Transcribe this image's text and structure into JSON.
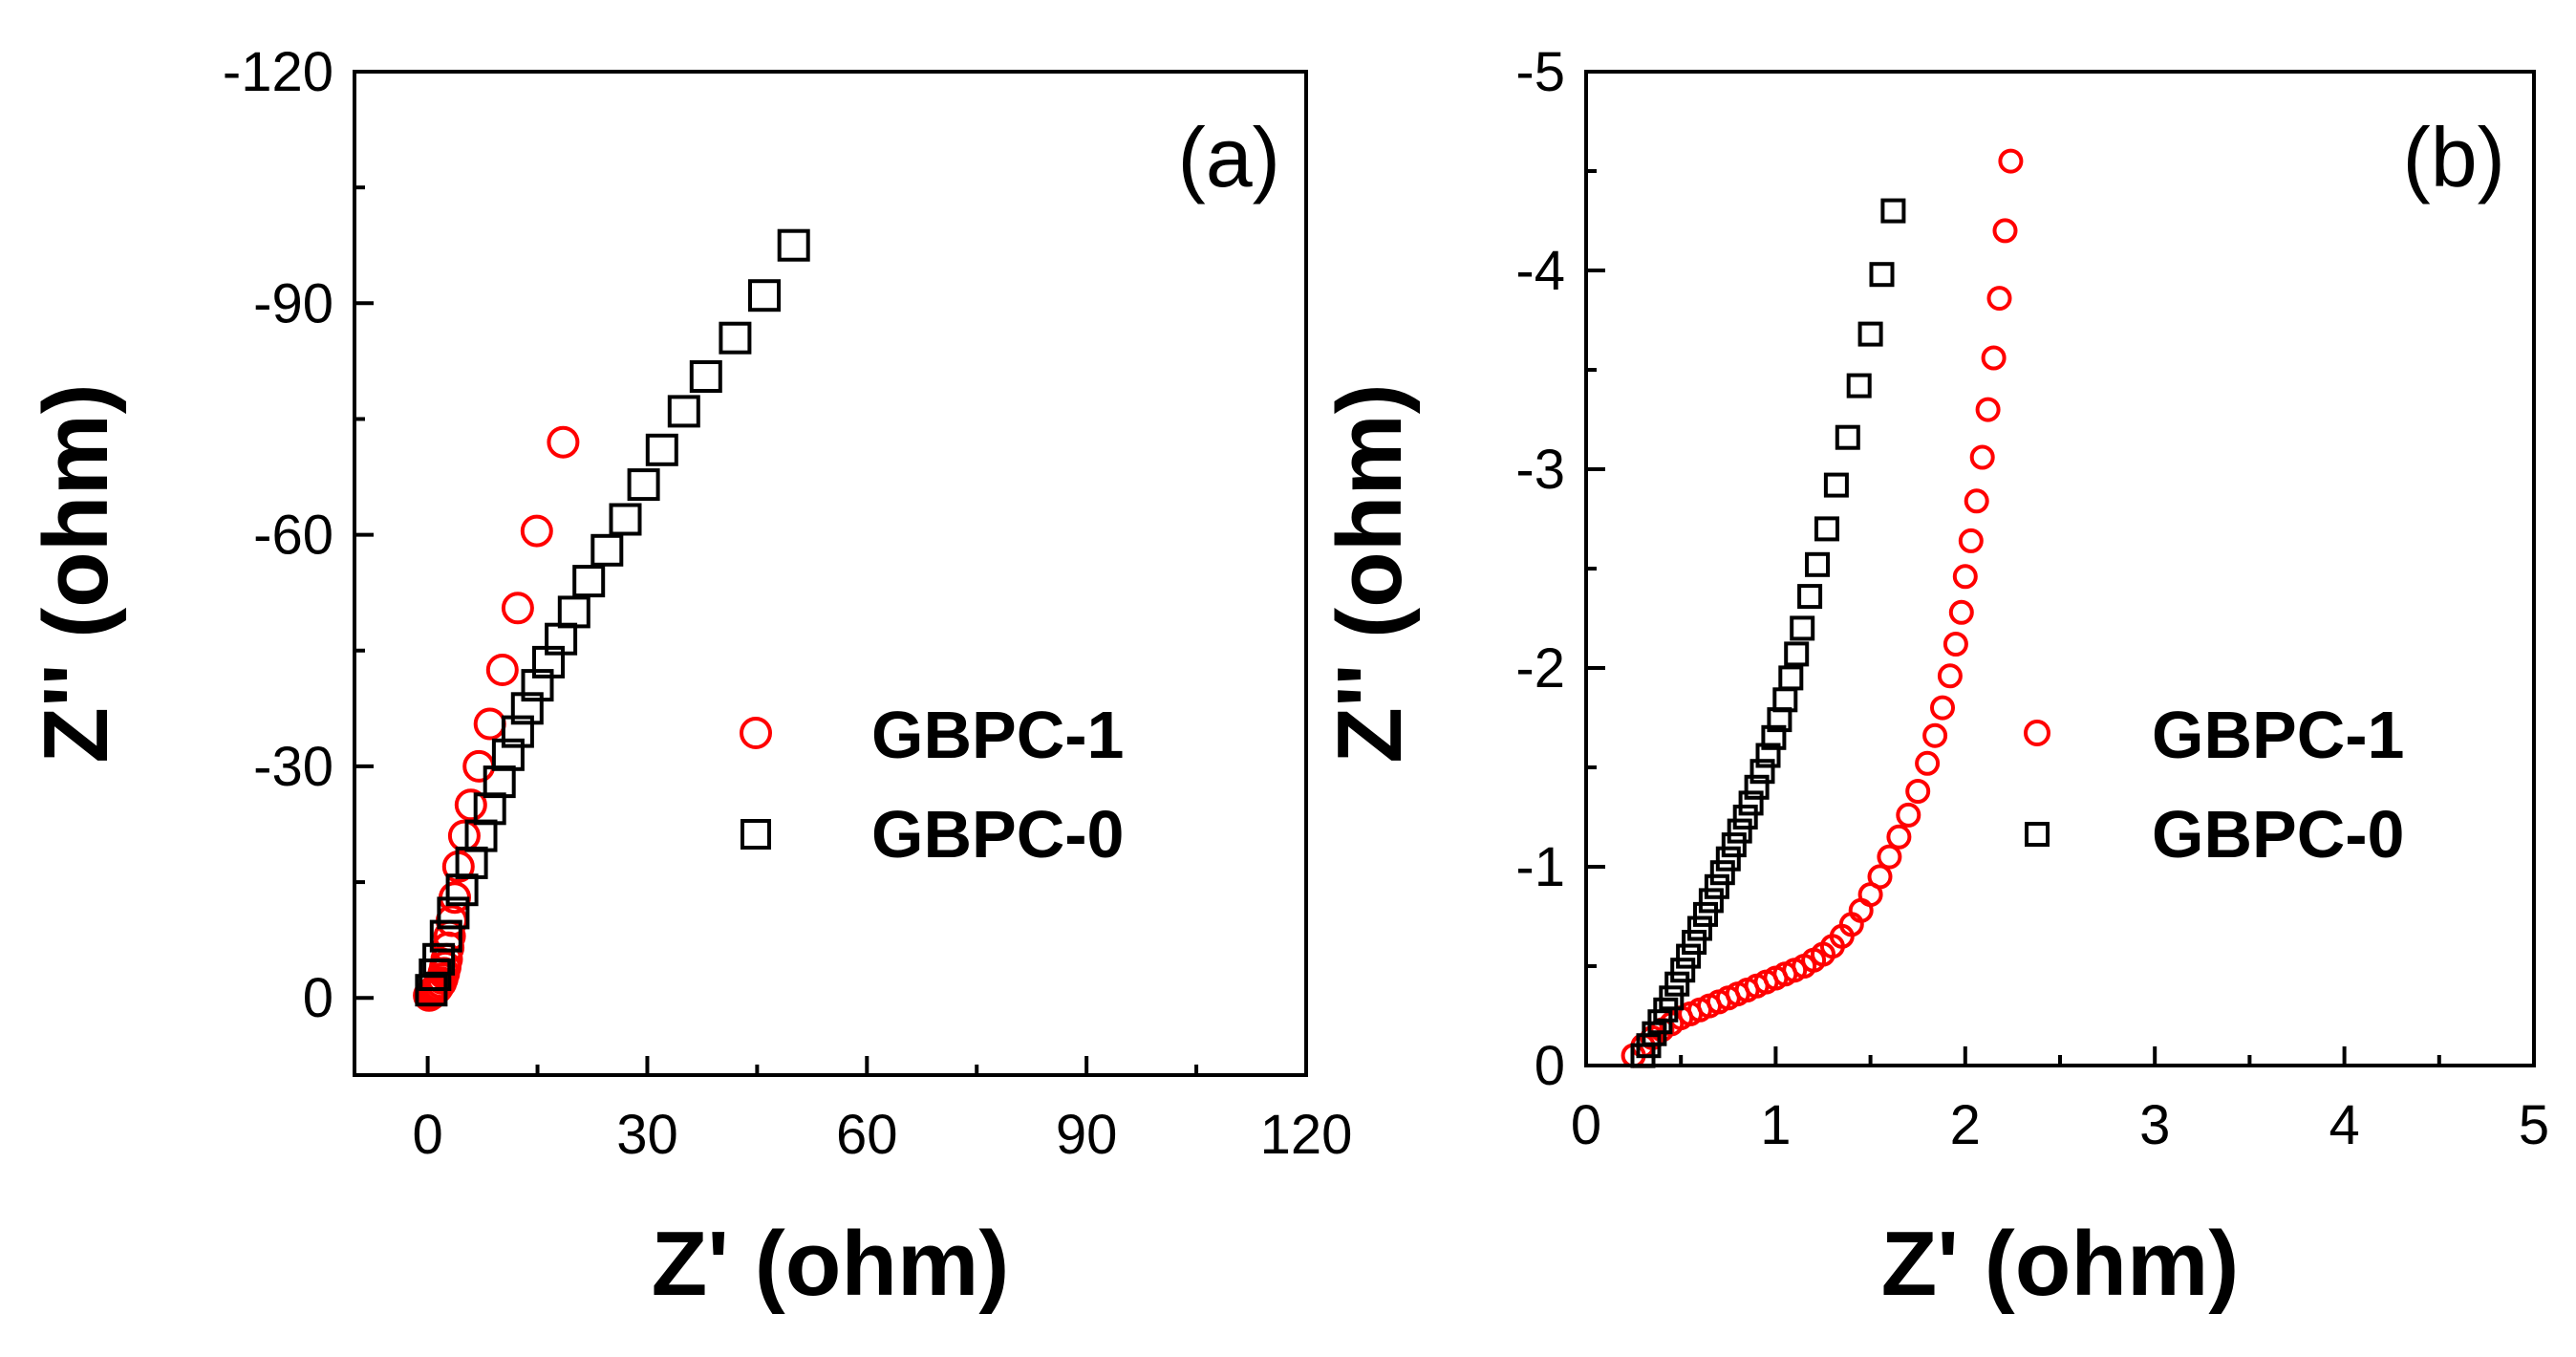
{
  "chart_data": [
    {
      "type": "scatter",
      "panel_label": "(a)",
      "xlabel": "Z' (ohm)",
      "ylabel": "Z'' (ohm)",
      "xlim": [
        -10,
        120
      ],
      "ylim": [
        10,
        -120
      ],
      "x_ticks": [
        0,
        30,
        60,
        90,
        120
      ],
      "x_tick_labels": [
        "0",
        "30",
        "60",
        "90",
        "120"
      ],
      "y_ticks": [
        0,
        -30,
        -60,
        -90,
        -120
      ],
      "y_tick_labels": [
        "0",
        "-30",
        "-60",
        "-90",
        "-120"
      ],
      "grid": false,
      "legend_position": "center-right",
      "series": [
        {
          "name": "GBPC-1",
          "marker": "circle",
          "color": "#ff0000",
          "x": [
            0.2,
            0.5,
            0.8,
            1.0,
            1.3,
            1.5,
            1.8,
            2.0,
            2.2,
            2.4,
            2.6,
            2.8,
            3.0,
            3.3,
            3.7,
            4.2,
            5.0,
            5.9,
            7.0,
            8.5,
            10.2,
            12.3,
            14.9,
            18.5
          ],
          "y": [
            -0.3,
            -0.5,
            -0.8,
            -1.0,
            -1.3,
            -1.6,
            -2.0,
            -2.5,
            -3.2,
            -4.0,
            -5.0,
            -6.5,
            -8.0,
            -10.0,
            -13.0,
            -17.0,
            -21.0,
            -25.0,
            -30.0,
            -35.5,
            -42.5,
            -50.5,
            -60.5,
            -72.0
          ]
        },
        {
          "name": "GBPC-0",
          "marker": "square",
          "color": "#000000",
          "x": [
            0.5,
            1.0,
            1.5,
            2.5,
            3.5,
            4.7,
            6.0,
            7.3,
            8.5,
            9.8,
            11.0,
            12.3,
            13.6,
            15.0,
            16.5,
            18.2,
            20.0,
            22.0,
            24.5,
            27.0,
            29.5,
            32.0,
            35.0,
            38.0,
            42.0,
            46.0,
            50.0
          ],
          "y": [
            -1.0,
            -3.0,
            -5.0,
            -8.0,
            -11.0,
            -14.0,
            -17.5,
            -21.0,
            -24.5,
            -28.0,
            -31.5,
            -34.5,
            -37.5,
            -40.5,
            -43.5,
            -46.5,
            -50.0,
            -54.0,
            -58.0,
            -62.0,
            -66.5,
            -71.0,
            -76.0,
            -80.5,
            -85.5,
            -91.0,
            -97.5
          ]
        }
      ]
    },
    {
      "type": "scatter",
      "panel_label": "(b)",
      "xlabel": "Z' (ohm)",
      "ylabel": "Z'' (ohm)",
      "xlim": [
        0,
        5
      ],
      "ylim": [
        0,
        -5
      ],
      "x_ticks": [
        0,
        1,
        2,
        3,
        4,
        5
      ],
      "x_tick_labels": [
        "0",
        "1",
        "2",
        "3",
        "4",
        "5"
      ],
      "y_ticks": [
        0,
        -1,
        -2,
        -3,
        -4,
        -5
      ],
      "y_tick_labels": [
        "0",
        "-1",
        "-2",
        "-3",
        "-4",
        "-5"
      ],
      "grid": false,
      "legend_position": "center-right",
      "series": [
        {
          "name": "GBPC-1",
          "marker": "circle",
          "color": "#ff0000",
          "x": [
            0.25,
            0.3,
            0.35,
            0.4,
            0.45,
            0.5,
            0.55,
            0.6,
            0.65,
            0.7,
            0.75,
            0.8,
            0.85,
            0.9,
            0.95,
            1.0,
            1.05,
            1.1,
            1.15,
            1.2,
            1.25,
            1.3,
            1.35,
            1.4,
            1.45,
            1.5,
            1.55,
            1.6,
            1.65,
            1.7,
            1.75,
            1.8,
            1.84,
            1.88,
            1.92,
            1.95,
            1.98,
            2.0,
            2.03,
            2.06,
            2.09,
            2.12,
            2.15,
            2.18,
            2.21,
            2.24
          ],
          "y": [
            -0.05,
            -0.1,
            -0.14,
            -0.18,
            -0.21,
            -0.24,
            -0.26,
            -0.28,
            -0.3,
            -0.32,
            -0.34,
            -0.36,
            -0.38,
            -0.4,
            -0.42,
            -0.44,
            -0.46,
            -0.48,
            -0.5,
            -0.53,
            -0.56,
            -0.6,
            -0.65,
            -0.71,
            -0.78,
            -0.86,
            -0.95,
            -1.05,
            -1.15,
            -1.26,
            -1.38,
            -1.52,
            -1.66,
            -1.8,
            -1.96,
            -2.12,
            -2.28,
            -2.46,
            -2.64,
            -2.84,
            -3.06,
            -3.3,
            -3.56,
            -3.86,
            -4.2,
            -4.55
          ]
        },
        {
          "name": "GBPC-0",
          "marker": "square",
          "color": "#000000",
          "x": [
            0.3,
            0.33,
            0.36,
            0.39,
            0.42,
            0.45,
            0.48,
            0.51,
            0.54,
            0.57,
            0.6,
            0.63,
            0.66,
            0.69,
            0.72,
            0.75,
            0.78,
            0.81,
            0.84,
            0.87,
            0.9,
            0.93,
            0.96,
            0.99,
            1.02,
            1.05,
            1.08,
            1.11,
            1.14,
            1.18,
            1.22,
            1.27,
            1.32,
            1.38,
            1.44,
            1.5,
            1.56,
            1.62
          ],
          "y": [
            -0.05,
            -0.1,
            -0.16,
            -0.22,
            -0.28,
            -0.34,
            -0.41,
            -0.48,
            -0.55,
            -0.62,
            -0.69,
            -0.76,
            -0.83,
            -0.9,
            -0.97,
            -1.04,
            -1.11,
            -1.18,
            -1.25,
            -1.32,
            -1.4,
            -1.48,
            -1.56,
            -1.65,
            -1.74,
            -1.84,
            -1.95,
            -2.07,
            -2.2,
            -2.36,
            -2.52,
            -2.7,
            -2.92,
            -3.16,
            -3.42,
            -3.68,
            -3.98,
            -4.3
          ]
        }
      ]
    }
  ]
}
